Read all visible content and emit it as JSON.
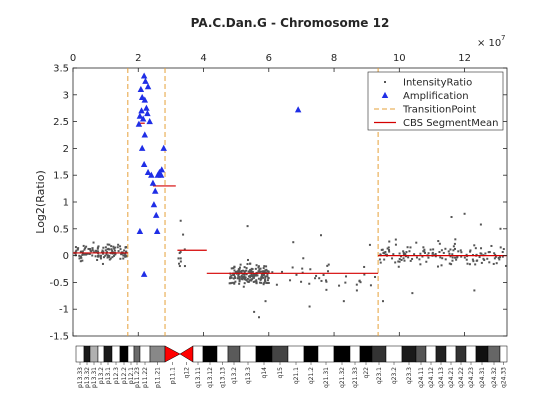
{
  "chart_data": {
    "type": "scatter",
    "title": "PA.C.Dan.G - Chromosome 12",
    "xlabel": "",
    "ylabel": "Log2(Ratio)",
    "x_exponent_label": "× 10",
    "x_exponent_power": "7",
    "xlim": [
      0,
      13.3
    ],
    "ylim": [
      -1.5,
      3.5
    ],
    "x_ticks": [
      0,
      2,
      4,
      6,
      8,
      10,
      12
    ],
    "x_tick_labels": [
      "0",
      "2",
      "4",
      "6",
      "8",
      "10",
      "12"
    ],
    "y_ticks": [
      -1.5,
      -1,
      -0.5,
      0,
      0.5,
      1,
      1.5,
      2,
      2.5,
      3,
      3.5
    ],
    "y_tick_labels": [
      "-1.5",
      "-1",
      "-0.5",
      "0",
      "0.5",
      "1",
      "1.5",
      "2",
      "2.5",
      "3",
      "3.5"
    ],
    "grid": false,
    "legend_position": "top-right",
    "colors": {
      "intensity": "#555555",
      "amplification": "#1f2ee6",
      "transition": "#e6a13a",
      "segment": "#d40000"
    },
    "legend": [
      {
        "key": "intensity",
        "label": "IntensityRatio"
      },
      {
        "key": "amplification",
        "label": "Amplification"
      },
      {
        "key": "transition",
        "label": "TransitionPoint"
      },
      {
        "key": "segment",
        "label": "CBS SegmentMean"
      }
    ],
    "transition_points": [
      1.68,
      2.82,
      9.35
    ],
    "segments": [
      {
        "x0": 0.0,
        "x1": 1.68,
        "y": 0.05
      },
      {
        "x0": 1.98,
        "x1": 2.2,
        "y": 2.47
      },
      {
        "x0": 2.45,
        "x1": 3.15,
        "y": 1.3
      },
      {
        "x0": 3.2,
        "x1": 4.1,
        "y": 0.1
      },
      {
        "x0": 4.1,
        "x1": 9.35,
        "y": -0.33
      },
      {
        "x0": 9.35,
        "x1": 13.3,
        "y": 0.0
      }
    ],
    "amplification_points": [
      [
        2.08,
        3.1
      ],
      [
        2.12,
        2.95
      ],
      [
        2.18,
        3.35
      ],
      [
        2.22,
        3.25
      ],
      [
        2.05,
        2.6
      ],
      [
        2.1,
        2.7
      ],
      [
        2.15,
        2.55
      ],
      [
        2.2,
        2.9
      ],
      [
        2.25,
        2.75
      ],
      [
        2.02,
        2.45
      ],
      [
        2.3,
        3.15
      ],
      [
        2.28,
        2.65
      ],
      [
        2.2,
        2.25
      ],
      [
        2.35,
        2.5
      ],
      [
        2.12,
        2.0
      ],
      [
        2.18,
        1.7
      ],
      [
        2.3,
        1.55
      ],
      [
        2.4,
        1.5
      ],
      [
        2.45,
        1.35
      ],
      [
        2.52,
        1.2
      ],
      [
        2.48,
        0.95
      ],
      [
        2.55,
        0.75
      ],
      [
        2.6,
        1.5
      ],
      [
        2.65,
        1.55
      ],
      [
        2.72,
        1.6
      ],
      [
        2.78,
        2.0
      ],
      [
        2.7,
        1.5
      ],
      [
        2.58,
        0.45
      ],
      [
        2.05,
        0.45
      ],
      [
        2.18,
        -0.35
      ],
      [
        6.9,
        2.72
      ]
    ],
    "intensity_groups": [
      {
        "x0": 0.05,
        "x1": 1.65,
        "center": 0.05,
        "spread": 0.13,
        "count": 130
      },
      {
        "x0": 3.2,
        "x1": 3.45,
        "center": 0.05,
        "spread": 0.25,
        "count": 10
      },
      {
        "x0": 4.8,
        "x1": 6.0,
        "center": -0.35,
        "spread": 0.17,
        "count": 190
      },
      {
        "x0": 6.0,
        "x1": 9.3,
        "center": -0.38,
        "spread": 0.23,
        "count": 35
      },
      {
        "x0": 9.4,
        "x1": 13.3,
        "center": 0.02,
        "spread": 0.2,
        "count": 150
      }
    ],
    "intensity_outliers": [
      [
        3.3,
        0.65
      ],
      [
        5.35,
        0.55
      ],
      [
        5.7,
        -1.15
      ],
      [
        5.55,
        -1.05
      ],
      [
        5.9,
        -0.85
      ],
      [
        6.75,
        0.25
      ],
      [
        7.6,
        0.38
      ],
      [
        9.1,
        0.2
      ],
      [
        12.0,
        0.78
      ],
      [
        11.6,
        0.72
      ],
      [
        12.5,
        0.58
      ],
      [
        13.1,
        0.5
      ],
      [
        9.5,
        -0.85
      ],
      [
        10.4,
        -0.7
      ],
      [
        8.3,
        -0.85
      ],
      [
        8.7,
        -0.65
      ],
      [
        12.3,
        -0.65
      ],
      [
        7.25,
        -0.95
      ]
    ],
    "ideogram_bands": [
      "p13.33",
      "p13.32",
      "p13.31",
      "p13.2",
      "p13.1",
      "p12.3",
      "p12.2",
      "p12.1",
      "p11.23",
      "p11.22",
      "p11.21",
      "p11.1",
      "q12",
      "q13.11",
      "q13.12",
      "q13.13",
      "q13.2",
      "q13.3",
      "q14",
      "q15",
      "q21.1",
      "q21.2",
      "q21.31",
      "q21.32",
      "q21.33",
      "q22",
      "q23.1",
      "q23.2",
      "q23.3",
      "q24.11",
      "q24.12",
      "q24.13",
      "q24.21",
      "q24.22",
      "q24.23",
      "q24.31",
      "q24.32",
      "q24.33"
    ]
  }
}
